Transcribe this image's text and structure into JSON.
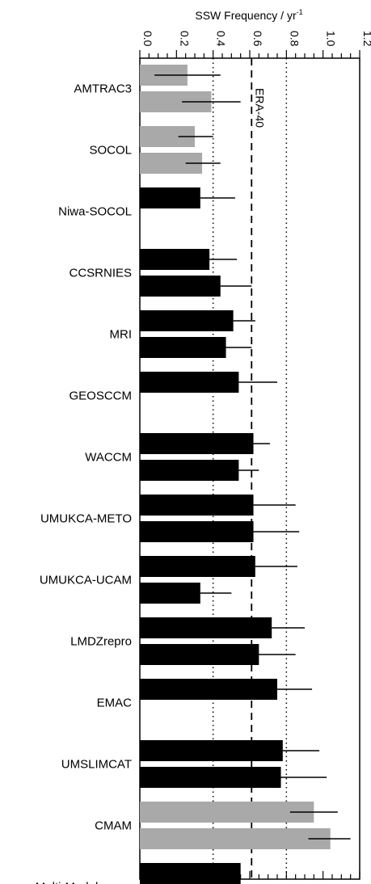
{
  "chart_data": {
    "type": "bar",
    "orientation": "horizontal",
    "title": "",
    "xlabel": "SSW Frequency / yr",
    "xlabel_superscript": "-1",
    "xlim": [
      0.0,
      1.2
    ],
    "ticks": [
      "0.0",
      "0.2",
      "0.4",
      "0.6",
      "0.8",
      "1.0",
      "1.2"
    ],
    "reference_line": {
      "label": "ERA-40",
      "value": 0.61,
      "style": "dashed"
    },
    "dotted_lines": [
      0.4,
      0.8
    ],
    "colors": {
      "gray": "#a9a9a9",
      "black": "#000000"
    },
    "groups": [
      {
        "label": "AMTRAC3",
        "color": "gray",
        "bars": [
          {
            "value": 0.26,
            "err": [
              0.08,
              0.44
            ]
          },
          {
            "value": 0.39,
            "err": [
              0.23,
              0.55
            ]
          }
        ]
      },
      {
        "label": "SOCOL",
        "color": "gray",
        "bars": [
          {
            "value": 0.3,
            "err": [
              0.21,
              0.4
            ]
          },
          {
            "value": 0.34,
            "err": [
              0.25,
              0.44
            ]
          }
        ]
      },
      {
        "label": "Niwa-SOCOL",
        "color": "black",
        "bars": [
          {
            "value": 0.33,
            "err": [
              0.33,
              0.52
            ]
          }
        ]
      },
      {
        "label": "CCSRNIES",
        "color": "black",
        "bars": [
          {
            "value": 0.38,
            "err": [
              0.38,
              0.53
            ]
          },
          {
            "value": 0.44,
            "err": [
              0.44,
              0.61
            ]
          }
        ]
      },
      {
        "label": "MRI",
        "color": "black",
        "bars": [
          {
            "value": 0.51,
            "err": [
              0.51,
              0.63
            ]
          },
          {
            "value": 0.47,
            "err": [
              0.47,
              0.61
            ]
          }
        ]
      },
      {
        "label": "GEOSCCM",
        "color": "black",
        "bars": [
          {
            "value": 0.54,
            "err": [
              0.54,
              0.75
            ]
          }
        ]
      },
      {
        "label": "WACCM",
        "color": "black",
        "bars": [
          {
            "value": 0.62,
            "err": [
              0.62,
              0.71
            ]
          },
          {
            "value": 0.54,
            "err": [
              0.54,
              0.65
            ]
          }
        ]
      },
      {
        "label": "UMUKCA-METO",
        "color": "black",
        "bars": [
          {
            "value": 0.62,
            "err": [
              0.62,
              0.85
            ]
          },
          {
            "value": 0.62,
            "err": [
              0.62,
              0.87
            ]
          }
        ]
      },
      {
        "label": "UMUKCA-UCAM",
        "color": "black",
        "bars": [
          {
            "value": 0.63,
            "err": [
              0.63,
              0.86
            ]
          },
          {
            "value": 0.33,
            "err": [
              0.33,
              0.5
            ]
          }
        ]
      },
      {
        "label": "LMDZrepro",
        "color": "black",
        "bars": [
          {
            "value": 0.72,
            "err": [
              0.72,
              0.9
            ]
          },
          {
            "value": 0.65,
            "err": [
              0.65,
              0.85
            ]
          }
        ]
      },
      {
        "label": "EMAC",
        "color": "black",
        "bars": [
          {
            "value": 0.75,
            "err": [
              0.75,
              0.94
            ]
          }
        ]
      },
      {
        "label": "UMSLIMCAT",
        "color": "black",
        "bars": [
          {
            "value": 0.78,
            "err": [
              0.78,
              0.98
            ]
          },
          {
            "value": 0.77,
            "err": [
              0.77,
              1.02
            ]
          }
        ]
      },
      {
        "label": "CMAM",
        "color": "gray",
        "bars": [
          {
            "value": 0.95,
            "err": [
              0.82,
              1.08
            ]
          },
          {
            "value": 1.04,
            "err": [
              0.92,
              1.15
            ]
          }
        ]
      },
      {
        "label": "Multi-Model mean",
        "color": "black",
        "bars": [
          {
            "value": 0.55,
            "err": null
          }
        ]
      }
    ]
  }
}
